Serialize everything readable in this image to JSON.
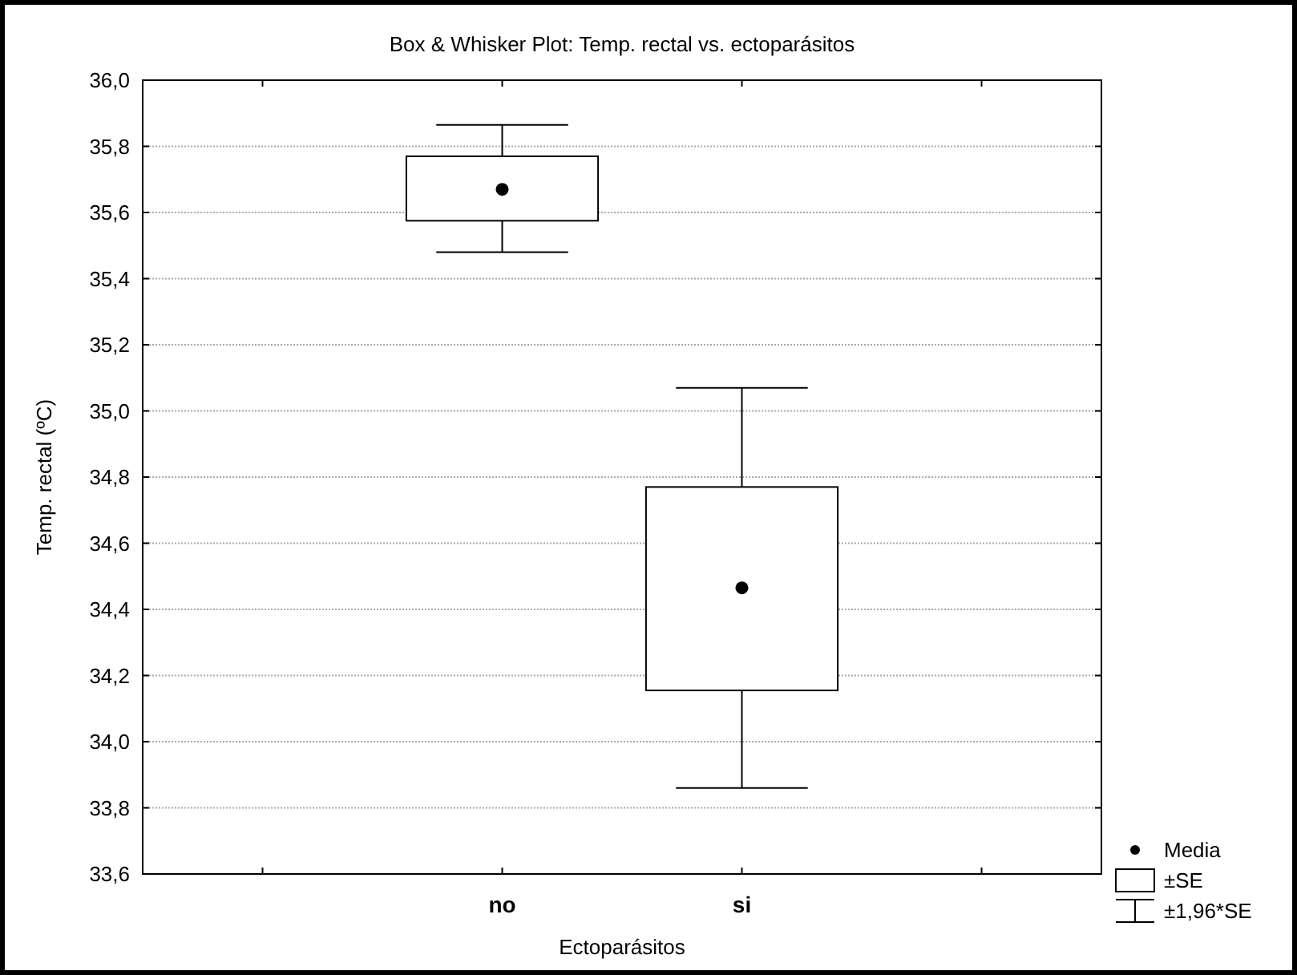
{
  "chart_data": {
    "type": "box",
    "title": "Box & Whisker Plot: Temp. rectal vs. ectoparásitos",
    "xlabel": "Ectoparásitos",
    "ylabel": "Temp. rectal (ºC)",
    "categories": [
      null,
      "no",
      "si",
      null
    ],
    "boxes": [
      null,
      {
        "low": 35.48,
        "q1": 35.575,
        "median": 35.67,
        "q3": 35.77,
        "high": 35.865
      },
      {
        "low": 33.86,
        "q1": 34.155,
        "median": 34.465,
        "q3": 34.77,
        "high": 35.07
      },
      null
    ],
    "ylim": [
      33.6,
      36.0
    ],
    "yticks": [
      {
        "value": 33.6,
        "label": "33,6"
      },
      {
        "value": 33.8,
        "label": "33,8"
      },
      {
        "value": 34.0,
        "label": "34,0"
      },
      {
        "value": 34.2,
        "label": "34,2"
      },
      {
        "value": 34.4,
        "label": "34,4"
      },
      {
        "value": 34.6,
        "label": "34,6"
      },
      {
        "value": 34.8,
        "label": "34,8"
      },
      {
        "value": 35.0,
        "label": "35,0"
      },
      {
        "value": 35.2,
        "label": "35,2"
      },
      {
        "value": 35.4,
        "label": "35,4"
      },
      {
        "value": 35.6,
        "label": "35,6"
      },
      {
        "value": 35.8,
        "label": "35,8"
      },
      {
        "value": 36.0,
        "label": "36,0"
      }
    ],
    "grid": "y",
    "marker": "circle",
    "annotations": [
      "Media",
      "±SE",
      "±1,96*SE"
    ]
  }
}
